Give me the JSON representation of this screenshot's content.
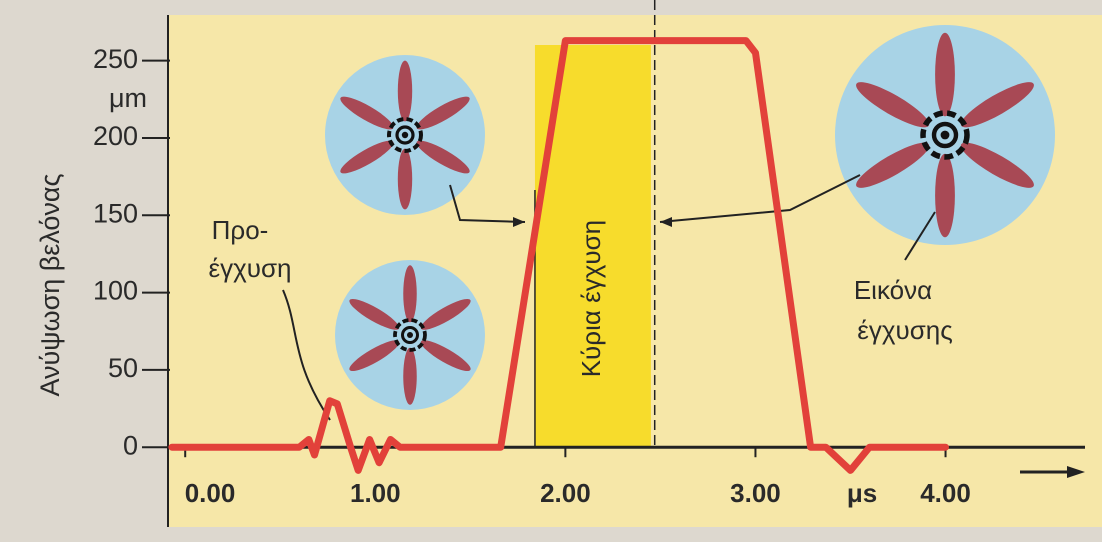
{
  "chart_data": {
    "type": "line",
    "y_label": "Ανύψωση βελόνας",
    "y_unit": "μm",
    "x_unit": "μs",
    "x": [
      -0.07,
      0.6,
      0.65,
      0.68,
      0.76,
      0.8,
      0.87,
      0.91,
      0.97,
      1.02,
      1.08,
      1.13,
      1.66,
      2.0,
      2.95,
      3.0,
      3.29,
      3.37,
      3.5,
      3.6,
      3.75,
      4.0
    ],
    "values": [
      0,
      0,
      5,
      -5,
      30,
      28,
      0,
      -15,
      5,
      -10,
      5,
      0,
      0,
      263,
      263,
      255,
      0,
      0,
      -15,
      0,
      0,
      0
    ],
    "color": "#e2413a",
    "xlim": [
      -0.08,
      4.76
    ],
    "ylim": [
      -60,
      275
    ],
    "xticks": [
      {
        "value": 0,
        "label": "0.00"
      },
      {
        "value": 1,
        "label": "1.00"
      },
      {
        "value": 2,
        "label": "2.00"
      },
      {
        "value": 3,
        "label": "3.00"
      },
      {
        "value": 4,
        "label": "4.00"
      }
    ],
    "yticks": [
      0,
      50,
      100,
      150,
      200,
      250
    ],
    "grid": false,
    "main_injection": {
      "label": "Κύρια έγχυση",
      "x_range": [
        1.84,
        2.45
      ],
      "color": "#f7dc2c"
    },
    "marker_x": 2.47,
    "annotations": [
      {
        "lines": [
          "Προ-",
          "έγχυση"
        ]
      },
      {
        "lines": [
          "Εικόνα",
          "έγχυσης"
        ]
      }
    ]
  }
}
